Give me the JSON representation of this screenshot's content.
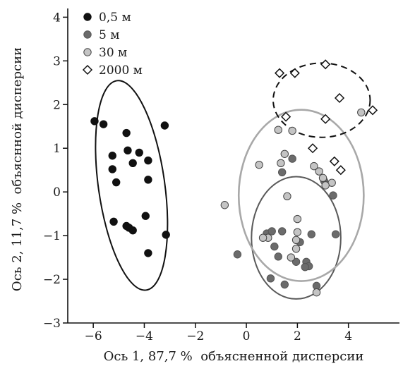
{
  "chart_data": {
    "type": "scatter",
    "xlabel": "Ось 1, 87,7 %  объясненной дисперсии",
    "ylabel": "Ось 2, 11,7 %  объяснной дисперсии",
    "xlim": [
      -7,
      6
    ],
    "ylim": [
      -3,
      4.2
    ],
    "xticks": [
      -6,
      -4,
      -2,
      0,
      2,
      4
    ],
    "yticks": [
      -3,
      -2,
      -1,
      0,
      1,
      2,
      3,
      4
    ],
    "xtick_labels": [
      "−6",
      "−4",
      "−2",
      "0",
      "2",
      "4"
    ],
    "ytick_labels": [
      "−3",
      "−2",
      "−1",
      "0",
      "1",
      "2",
      "3",
      "4"
    ],
    "grid": false,
    "legend_position": "top-left",
    "series": [
      {
        "name": "0,5 м",
        "marker": "circle",
        "fill": "#111111",
        "stroke": "#111111",
        "points": [
          [
            -5.95,
            1.62
          ],
          [
            -5.6,
            1.55
          ],
          [
            -4.7,
            1.35
          ],
          [
            -3.2,
            1.52
          ],
          [
            -5.25,
            0.83
          ],
          [
            -4.65,
            0.95
          ],
          [
            -4.2,
            0.9
          ],
          [
            -3.85,
            0.72
          ],
          [
            -5.25,
            0.52
          ],
          [
            -4.45,
            0.66
          ],
          [
            -3.85,
            0.28
          ],
          [
            -5.1,
            0.22
          ],
          [
            -3.95,
            -0.55
          ],
          [
            -5.2,
            -0.68
          ],
          [
            -4.7,
            -0.78
          ],
          [
            -4.6,
            -0.82
          ],
          [
            -4.45,
            -0.88
          ],
          [
            -3.15,
            -0.98
          ],
          [
            -3.85,
            -1.4
          ]
        ]
      },
      {
        "name": "5 м",
        "marker": "circle",
        "fill": "#6b6b6b",
        "stroke": "#555555",
        "points": [
          [
            1.4,
            0.45
          ],
          [
            1.8,
            0.76
          ],
          [
            3.05,
            0.25
          ],
          [
            3.4,
            -0.08
          ],
          [
            0.8,
            -0.95
          ],
          [
            1.0,
            -0.9
          ],
          [
            1.4,
            -0.9
          ],
          [
            2.55,
            -0.97
          ],
          [
            3.5,
            -0.97
          ],
          [
            1.1,
            -1.25
          ],
          [
            2.1,
            -1.15
          ],
          [
            1.95,
            -1.6
          ],
          [
            1.25,
            -1.48
          ],
          [
            2.35,
            -1.6
          ],
          [
            2.45,
            -1.7
          ],
          [
            2.3,
            -1.72
          ],
          [
            -0.35,
            -1.43
          ],
          [
            0.95,
            -1.98
          ],
          [
            1.5,
            -2.12
          ],
          [
            2.75,
            -2.15
          ]
        ]
      },
      {
        "name": "30 м",
        "marker": "circle",
        "fill": "#c4c4c4",
        "stroke": "#444444",
        "points": [
          [
            1.25,
            1.42
          ],
          [
            1.8,
            1.4
          ],
          [
            4.5,
            1.82
          ],
          [
            1.5,
            0.87
          ],
          [
            0.5,
            0.62
          ],
          [
            1.35,
            0.66
          ],
          [
            2.65,
            0.59
          ],
          [
            2.85,
            0.47
          ],
          [
            3.0,
            0.32
          ],
          [
            3.35,
            0.21
          ],
          [
            3.1,
            0.15
          ],
          [
            1.6,
            -0.1
          ],
          [
            -0.85,
            -0.3
          ],
          [
            2.0,
            -0.62
          ],
          [
            2.0,
            -0.92
          ],
          [
            1.95,
            -1.1
          ],
          [
            0.85,
            -1.05
          ],
          [
            0.65,
            -1.05
          ],
          [
            1.95,
            -1.3
          ],
          [
            1.75,
            -1.5
          ],
          [
            2.75,
            -2.3
          ]
        ]
      },
      {
        "name": "2000 м",
        "marker": "diamond",
        "fill": "#ffffff",
        "stroke": "#111111",
        "points": [
          [
            1.3,
            2.72
          ],
          [
            1.9,
            2.72
          ],
          [
            3.1,
            2.92
          ],
          [
            3.65,
            2.15
          ],
          [
            4.95,
            1.87
          ],
          [
            1.55,
            1.72
          ],
          [
            3.1,
            1.67
          ],
          [
            2.6,
            1.0
          ],
          [
            3.45,
            0.7
          ],
          [
            3.7,
            0.5
          ]
        ]
      }
    ],
    "ellipses": [
      {
        "group": "0,5 м",
        "cx": -4.5,
        "cy": 0.15,
        "rx": 1.3,
        "ry": 2.42,
        "stroke": "#111111",
        "dash": "solid"
      },
      {
        "group": "5 м",
        "cx": 1.95,
        "cy": -1.05,
        "rx": 1.75,
        "ry": 1.4,
        "stroke": "#5a5a5a",
        "dash": "solid"
      },
      {
        "group": "30 м",
        "cx": 2.15,
        "cy": -0.08,
        "rx": 2.45,
        "ry": 1.96,
        "stroke": "#a8a8a8",
        "dash": "solid"
      },
      {
        "group": "2000 м",
        "cx": 2.95,
        "cy": 2.1,
        "rx": 1.9,
        "ry": 0.85,
        "stroke": "#111111",
        "dash": "dashed"
      }
    ]
  }
}
